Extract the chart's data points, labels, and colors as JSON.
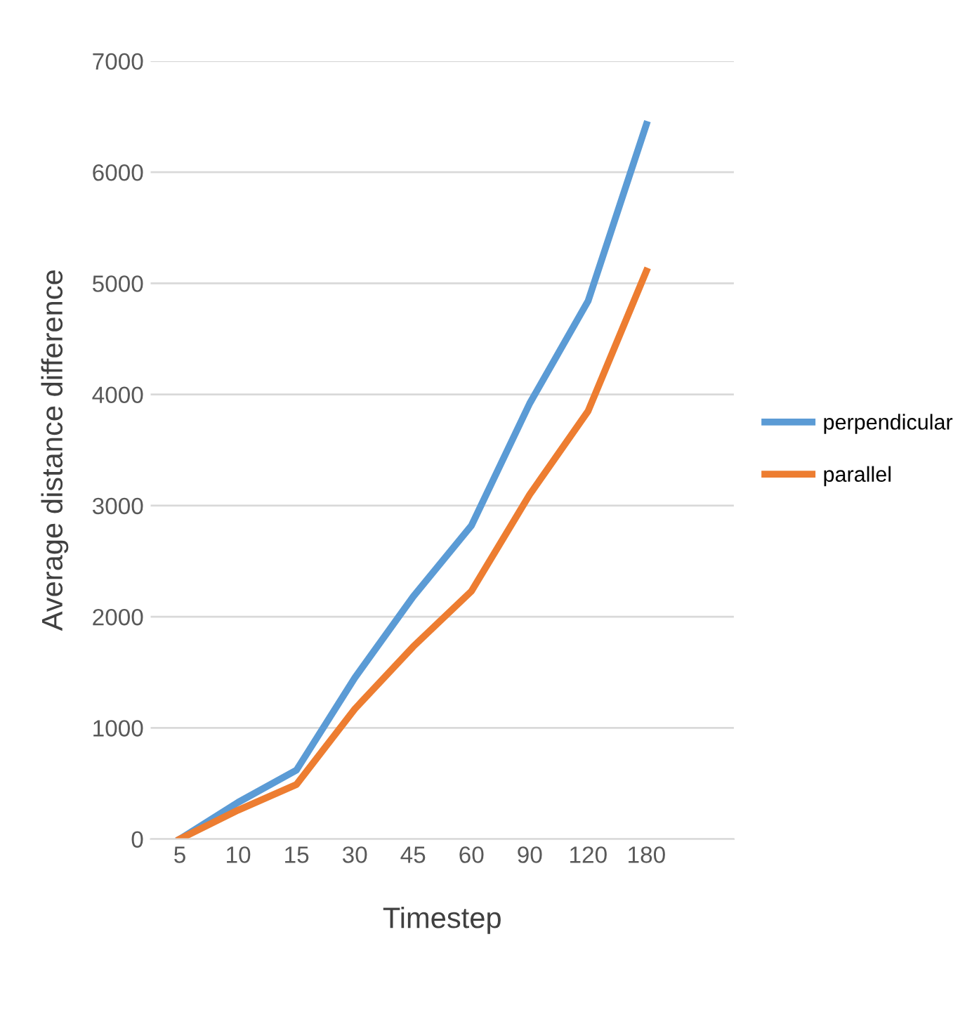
{
  "chart_data": {
    "type": "line",
    "xlabel": "Timestep",
    "ylabel": "Average distance difference",
    "categories": [
      "5",
      "10",
      "15",
      "30",
      "45",
      "60",
      "90",
      "120",
      "180",
      null
    ],
    "ylim": [
      0,
      7000
    ],
    "yticks": [
      0,
      1000,
      2000,
      3000,
      4000,
      5000,
      6000,
      7000
    ],
    "grid": "y",
    "legend": "right",
    "marker": "none",
    "line_style": "solid",
    "series": [
      {
        "name": "perpendicular",
        "color": "#5b9bd5",
        "values": [
          0,
          330,
          620,
          1450,
          2180,
          2820,
          3920,
          4840,
          6430,
          null
        ]
      },
      {
        "name": "parallel",
        "color": "#ed7d31",
        "values": [
          0,
          260,
          490,
          1170,
          1730,
          2230,
          3100,
          3850,
          5110,
          null
        ]
      }
    ]
  }
}
